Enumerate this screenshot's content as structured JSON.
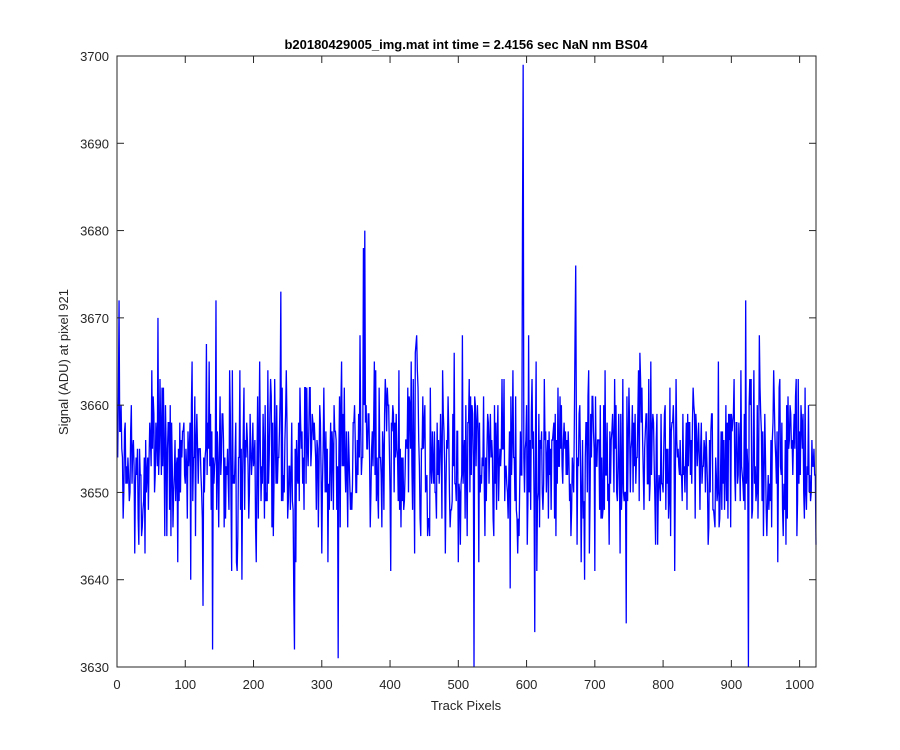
{
  "chart_data": {
    "type": "line",
    "title": "b20180429005_img.mat int time = 2.4156 sec  NaN nm BS04",
    "xlabel": "Track Pixels",
    "ylabel": "Signal (ADU) at pixel 921",
    "xlim": [
      0,
      1024
    ],
    "ylim": [
      3630,
      3700
    ],
    "xticks": [
      0,
      100,
      200,
      300,
      400,
      500,
      600,
      700,
      800,
      900,
      1000
    ],
    "yticks": [
      3630,
      3640,
      3650,
      3660,
      3670,
      3680,
      3690,
      3700
    ],
    "grid": false,
    "series": [
      {
        "color": "#0000ff",
        "x_start": 1,
        "x_step": 1,
        "count": 1024,
        "mean": 3654,
        "noise_std": 5.5,
        "peaks": [
          {
            "x": 595,
            "y": 3699
          },
          {
            "x": 363,
            "y": 3680
          },
          {
            "x": 361,
            "y": 3678
          },
          {
            "x": 594,
            "y": 3680
          },
          {
            "x": 3,
            "y": 3672
          },
          {
            "x": 145,
            "y": 3672
          },
          {
            "x": 240,
            "y": 3673
          },
          {
            "x": 672,
            "y": 3676
          },
          {
            "x": 921,
            "y": 3672
          },
          {
            "x": 60,
            "y": 3670
          },
          {
            "x": 523,
            "y": 3630
          },
          {
            "x": 925,
            "y": 3630
          },
          {
            "x": 324,
            "y": 3631
          },
          {
            "x": 260,
            "y": 3632
          },
          {
            "x": 140,
            "y": 3632
          },
          {
            "x": 612,
            "y": 3634
          },
          {
            "x": 746,
            "y": 3635
          },
          {
            "x": 126,
            "y": 3637
          }
        ]
      }
    ]
  }
}
